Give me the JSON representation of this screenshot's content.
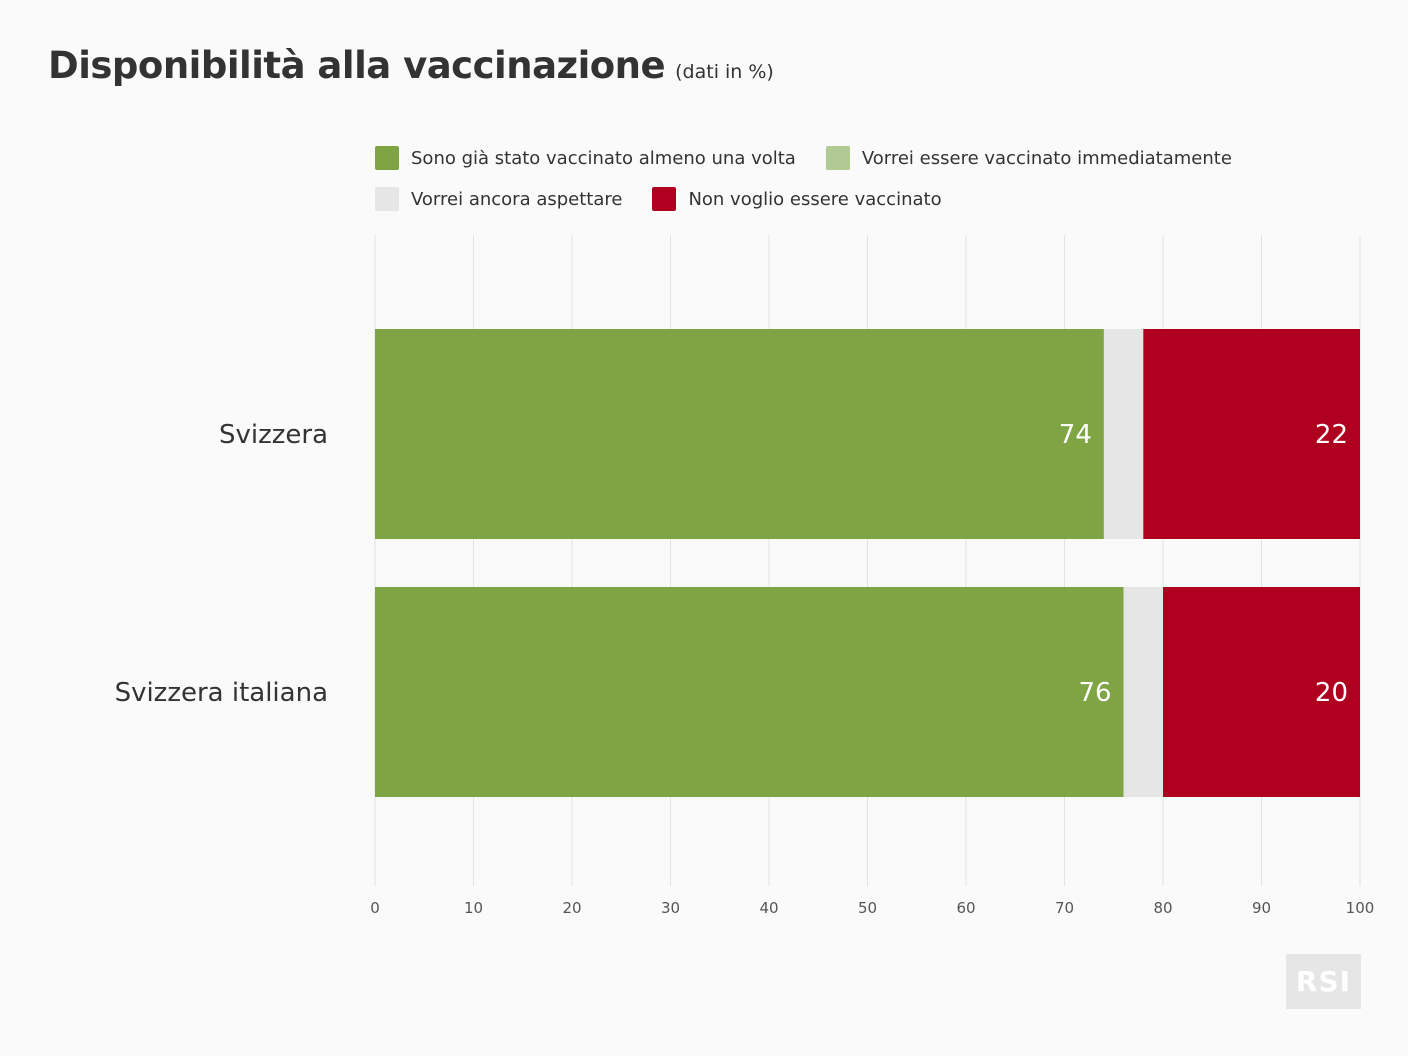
{
  "header": {
    "title": "Disponibilità alla vaccinazione",
    "subtitle": "(dati in %)"
  },
  "legend": [
    {
      "label": "Sono già stato vaccinato almeno una volta",
      "color": "#7fa444"
    },
    {
      "label": "Vorrei essere vaccinato immediatamente",
      "color": "#b1c993"
    },
    {
      "label": "Vorrei ancora aspettare",
      "color": "#e6e6e6"
    },
    {
      "label": "Non voglio essere vaccinato",
      "color": "#b0001f"
    }
  ],
  "chart_data": {
    "type": "bar",
    "orientation": "horizontal",
    "stacked": true,
    "categories": [
      "Svizzera",
      "Svizzera italiana"
    ],
    "series": [
      {
        "name": "Sono già stato vaccinato almeno una volta",
        "values": [
          74,
          76
        ],
        "color": "#7fa444",
        "labels": [
          "74",
          "76"
        ]
      },
      {
        "name": "Vorrei essere vaccinato immediatamente",
        "values": [
          0,
          0
        ],
        "color": "#b1c993"
      },
      {
        "name": "Vorrei ancora aspettare",
        "values": [
          4,
          4
        ],
        "color": "#e6e6e6"
      },
      {
        "name": "Non voglio essere vaccinato",
        "values": [
          22,
          20
        ],
        "color": "#b0001f",
        "labels": [
          "22",
          "20"
        ]
      }
    ],
    "xlim": [
      0,
      100
    ],
    "xticks": [
      "0",
      "10",
      "20",
      "30",
      "40",
      "50",
      "60",
      "70",
      "80",
      "90",
      "100"
    ],
    "grid": true,
    "legend_position": "top"
  },
  "logo": {
    "text": "RSI"
  }
}
